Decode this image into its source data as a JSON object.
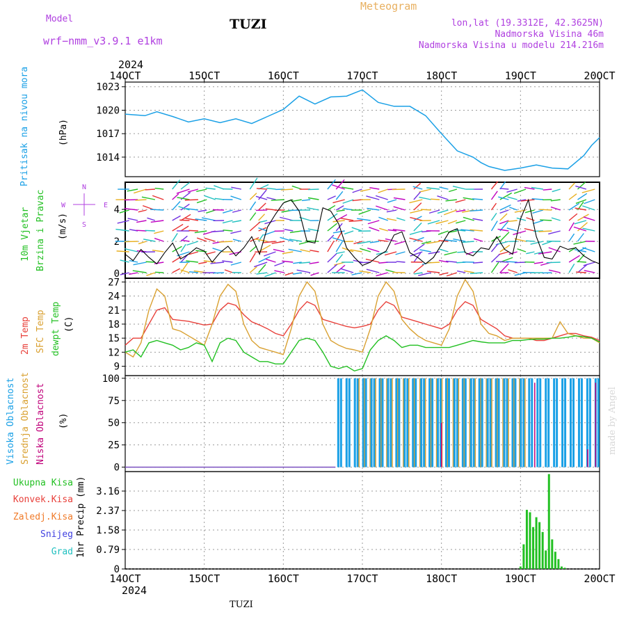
{
  "header": {
    "model_label": "Model",
    "model_name": "wrf−nmm_v3.9.1  e1km",
    "station": "TUZI",
    "meteogram": "Meteogram",
    "lonlat": "lon,lat (19.3312E, 42.3625N)",
    "altitude": "Nadmorska Visina 46m",
    "model_altitude": "Nadmorska Visina u modelu 214.216m"
  },
  "footer": {
    "station": "TUZI",
    "watermark": "made by Angel"
  },
  "axis": {
    "year": "2024",
    "dates": [
      "14OCT",
      "15OCT",
      "16OCT",
      "17OCT",
      "18OCT",
      "19OCT",
      "20OCT"
    ]
  },
  "panel_labels": {
    "pressure": [
      "Pritisak na nivou mora",
      "(hPa)"
    ],
    "wind": [
      "10m Vjetar",
      "Brzina i Pravac",
      "(m/s)"
    ],
    "compass": {
      "w": "W",
      "e": "E",
      "s": "S",
      "n": "N"
    },
    "temp": [
      "2m Temp",
      "SFC Temp",
      "dewpt Temp",
      "(C)"
    ],
    "cloud": [
      "Visoka Oblacnost",
      "Srednja Oblacnost",
      "Niska Oblacnost",
      "(%)"
    ],
    "precip_unit": "1hr Precip (mm)",
    "precip_legend": [
      "Ukupna Kisa",
      "Konvek.Kisa",
      "Zaledj.Kisa",
      "Snijeg",
      "Grad"
    ]
  },
  "colors": {
    "pressure": "#1aa0e6",
    "temp2m": "#e8403a",
    "sfc": "#d9a030",
    "dewpt": "#22c022",
    "cloud_high": "#1aa0e6",
    "cloud_mid": "#d9a030",
    "cloud_low": "#c0007a",
    "rain": "#22c022",
    "conv": "#e8403a",
    "frz": "#f07a28",
    "snow": "#4040e0",
    "hail": "#20c0c0",
    "compass": "#b040e0",
    "label_purple": "#b040e0",
    "meteogram": "#e8b060"
  },
  "chart_data": [
    {
      "type": "line",
      "title": "",
      "ylabel": "Pritisak na nivou mora (hPa)",
      "ylim": [
        1011.5,
        1023.6
      ],
      "yticks": [
        1014,
        1017,
        1020,
        1023
      ],
      "x_unit": "days since 14OCT 00UTC",
      "series": [
        {
          "name": "Pritisak",
          "x": [
            0,
            0.25,
            0.4,
            0.6,
            0.8,
            1.0,
            1.2,
            1.4,
            1.6,
            1.8,
            2.0,
            2.2,
            2.4,
            2.6,
            2.8,
            3.0,
            3.2,
            3.4,
            3.6,
            3.8,
            4.0,
            4.2,
            4.4,
            4.5,
            4.6,
            4.8,
            5.0,
            5.1,
            5.2,
            5.4,
            5.6,
            5.8,
            5.9,
            6.0
          ],
          "values": [
            1019.5,
            1019.3,
            1019.8,
            1019.2,
            1018.5,
            1018.9,
            1018.4,
            1018.9,
            1018.3,
            1019.2,
            1020.1,
            1021.8,
            1020.8,
            1021.7,
            1021.8,
            1022.6,
            1021,
            1020.5,
            1020.5,
            1019.3,
            1017,
            1014.8,
            1014,
            1013.3,
            1012.8,
            1012.3,
            1012.6,
            1012.8,
            1013,
            1012.6,
            1012.5,
            1014.2,
            1015.5,
            1016.5
          ]
        }
      ]
    },
    {
      "type": "line",
      "title": "",
      "ylabel": "10m Vjetar Brzina i Pravac (m/s)",
      "ylim": [
        -0.3,
        5.7
      ],
      "yticks": [
        0,
        2,
        4
      ],
      "series": [
        {
          "name": "Brzina",
          "x": [
            0,
            0.1,
            0.2,
            0.3,
            0.4,
            0.5,
            0.6,
            0.7,
            0.8,
            0.9,
            1.0,
            1.1,
            1.2,
            1.3,
            1.4,
            1.5,
            1.6,
            1.7,
            1.8,
            1.9,
            2.0,
            2.1,
            2.2,
            2.3,
            2.4,
            2.5,
            2.6,
            2.7,
            2.8,
            2.9,
            3.0,
            3.1,
            3.2,
            3.3,
            3.4,
            3.5,
            3.6,
            3.7,
            3.8,
            3.9,
            4.0,
            4.1,
            4.2,
            4.3,
            4.4,
            4.5,
            4.6,
            4.7,
            4.8,
            4.9,
            5.0,
            5.1,
            5.2,
            5.3,
            5.4,
            5.5,
            5.6,
            5.7,
            5.8,
            5.9,
            6.0
          ],
          "values": [
            1.2,
            0.8,
            1.5,
            1.0,
            0.6,
            1.3,
            1.9,
            0.9,
            1.2,
            1.6,
            1.4,
            0.7,
            1.3,
            1.7,
            1.1,
            1.6,
            2.3,
            1.2,
            2.9,
            3.7,
            4.4,
            4.6,
            3.9,
            2.0,
            1.9,
            4.1,
            3.9,
            3.1,
            1.6,
            1.0,
            0.5,
            0.7,
            1.1,
            1.4,
            2.4,
            2.6,
            1.3,
            1.0,
            0.6,
            1.0,
            1.8,
            2.6,
            2.8,
            1.3,
            1.1,
            1.6,
            1.5,
            2.3,
            1.5,
            1.2,
            3.4,
            4.6,
            2.3,
            1.0,
            0.9,
            1.7,
            1.5,
            1.6,
            1.1,
            0.8,
            0.6
          ]
        }
      ]
    },
    {
      "type": "line",
      "title": "",
      "ylabel": "(C)",
      "ylim": [
        7,
        27.8
      ],
      "yticks": [
        9,
        12,
        15,
        18,
        21,
        24,
        27
      ],
      "x": [
        0,
        0.1,
        0.2,
        0.3,
        0.4,
        0.5,
        0.6,
        0.7,
        0.8,
        0.9,
        1.0,
        1.1,
        1.2,
        1.3,
        1.4,
        1.5,
        1.6,
        1.7,
        1.8,
        1.9,
        2.0,
        2.1,
        2.2,
        2.3,
        2.4,
        2.5,
        2.6,
        2.7,
        2.8,
        2.9,
        3.0,
        3.1,
        3.2,
        3.3,
        3.4,
        3.5,
        3.6,
        3.7,
        3.8,
        3.9,
        4.0,
        4.1,
        4.2,
        4.3,
        4.4,
        4.5,
        4.6,
        4.7,
        4.8,
        4.9,
        5.0,
        5.1,
        5.2,
        5.3,
        5.4,
        5.5,
        5.6,
        5.7,
        5.8,
        5.9,
        6.0
      ],
      "series": [
        {
          "name": "2m Temp",
          "values": [
            13.5,
            15,
            15,
            18,
            21,
            21.5,
            19,
            18.8,
            18.6,
            18.2,
            17.8,
            18,
            21,
            22.5,
            22,
            20,
            18.5,
            17.8,
            17,
            16,
            15.5,
            18,
            21,
            22.8,
            22,
            19,
            18.5,
            18,
            17.5,
            17.2,
            17.5,
            18,
            21,
            22.8,
            22,
            19.5,
            19,
            18.5,
            18,
            17.5,
            17,
            18,
            21,
            22.8,
            22,
            19,
            18,
            17,
            15.5,
            15,
            15,
            15,
            14.5,
            14.5,
            15,
            15.5,
            16,
            16,
            15.5,
            15.2,
            14.5
          ]
        },
        {
          "name": "SFC Temp",
          "values": [
            12,
            11,
            14,
            21,
            25.5,
            24,
            17,
            16.5,
            15.5,
            14.5,
            13.5,
            18,
            24,
            26.5,
            25,
            18,
            14.5,
            13,
            12.5,
            12,
            11.5,
            17,
            24,
            27,
            25,
            18,
            14.5,
            13.5,
            12.8,
            12.5,
            12,
            17,
            24,
            27,
            25,
            19,
            17,
            15.5,
            14.5,
            14,
            13.5,
            17,
            24,
            27.5,
            25,
            18,
            16,
            15.5,
            14.5,
            15,
            15,
            15,
            15,
            15,
            15,
            18.5,
            16,
            15.5,
            15,
            15,
            14
          ]
        },
        {
          "name": "dewpt Temp",
          "values": [
            12,
            12.5,
            11,
            14,
            14.5,
            14,
            13.5,
            12.5,
            13,
            14,
            13.5,
            10,
            14,
            15,
            14.5,
            12,
            11,
            10,
            10,
            9.5,
            9.5,
            12,
            14.5,
            15,
            14.5,
            12,
            9,
            8.5,
            9,
            8,
            8.5,
            12.5,
            14.5,
            15.5,
            14.5,
            13,
            13.5,
            13.5,
            13,
            13,
            13,
            13,
            13.5,
            14,
            14.5,
            14.2,
            14,
            14,
            14,
            14.5,
            14.5,
            14.7,
            14.8,
            14.8,
            15,
            15,
            15.2,
            15.5,
            15.3,
            15,
            14.2
          ]
        }
      ]
    },
    {
      "type": "bar",
      "title": "",
      "ylabel": "(%)",
      "ylim": [
        -5,
        103
      ],
      "yticks": [
        0,
        25,
        50,
        75,
        100
      ],
      "cloud_start_day": 2.66,
      "cloud_end_day": 6.0,
      "series": [
        {
          "name": "Visoka Oblacnost",
          "values_note": "cycles between 0 and 100 after 16OCT 16UTC"
        },
        {
          "name": "Srednja Oblacnost",
          "values_note": "mostly 100 between 17OCT and 19OCT, partial 72-90 near 17.8OCT"
        },
        {
          "name": "Niska Oblacnost",
          "values": [
            {
              "x": 4.0,
              "v": 50
            },
            {
              "x": 5.18,
              "v": 95
            },
            {
              "x": 5.85,
              "v": 20
            },
            {
              "x": 5.95,
              "v": 95
            }
          ]
        }
      ]
    },
    {
      "type": "bar",
      "title": "",
      "ylabel": "1hr Precip (mm)",
      "ylim": [
        0,
        3.95
      ],
      "yticks": [
        0,
        0.79,
        1.58,
        2.37,
        3.16
      ],
      "series": [
        {
          "name": "Ukupna Kisa",
          "x": [
            5.0,
            5.04,
            5.08,
            5.12,
            5.16,
            5.2,
            5.24,
            5.28,
            5.32,
            5.36,
            5.4,
            5.44,
            5.48,
            5.52,
            5.56
          ],
          "values": [
            0.1,
            1.0,
            2.4,
            2.3,
            1.7,
            2.1,
            1.9,
            1.5,
            0.75,
            3.85,
            1.2,
            0.7,
            0.4,
            0.1,
            0.05
          ]
        }
      ]
    }
  ]
}
